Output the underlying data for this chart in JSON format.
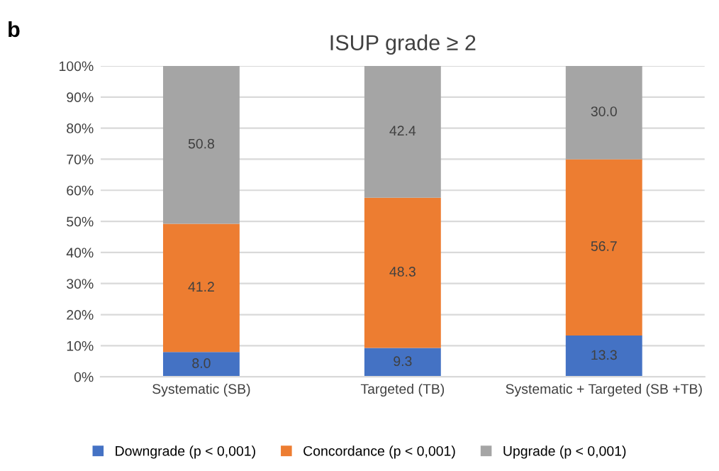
{
  "chart_data": {
    "type": "bar",
    "title": "ISUP grade ≥ 2",
    "annotations": [
      "b"
    ],
    "stacked": true,
    "categories": [
      "Systematic (SB)",
      "Targeted (TB)",
      "Systematic + Targeted (SB +TB)"
    ],
    "series": [
      {
        "name": "Downgrade (p < 0,001)",
        "color": "#4472c4",
        "values": [
          8.0,
          9.3,
          13.3
        ],
        "value_labels": [
          "8.0",
          "9.3",
          "13.3"
        ]
      },
      {
        "name": "Concordance (p < 0,001)",
        "color": "#ed7d31",
        "values": [
          41.2,
          48.3,
          56.7
        ],
        "value_labels": [
          "41.2",
          "48.3",
          "56.7"
        ]
      },
      {
        "name": "Upgrade (p < 0,001)",
        "color": "#a5a5a5",
        "values": [
          50.8,
          42.4,
          30.0
        ],
        "value_labels": [
          "50.8",
          "42.4",
          "30.0"
        ]
      }
    ],
    "ylim": [
      0,
      100
    ],
    "yticks": [
      {
        "value": 0,
        "label": "0%"
      },
      {
        "value": 10,
        "label": "10%"
      },
      {
        "value": 20,
        "label": "20%"
      },
      {
        "value": 30,
        "label": "30%"
      },
      {
        "value": 40,
        "label": "40%"
      },
      {
        "value": 50,
        "label": "50%"
      },
      {
        "value": 60,
        "label": "60%"
      },
      {
        "value": 70,
        "label": "70%"
      },
      {
        "value": 80,
        "label": "80%"
      },
      {
        "value": 90,
        "label": "90%"
      },
      {
        "value": 100,
        "label": "100%"
      }
    ],
    "grid": "y",
    "legend": "bottom"
  }
}
